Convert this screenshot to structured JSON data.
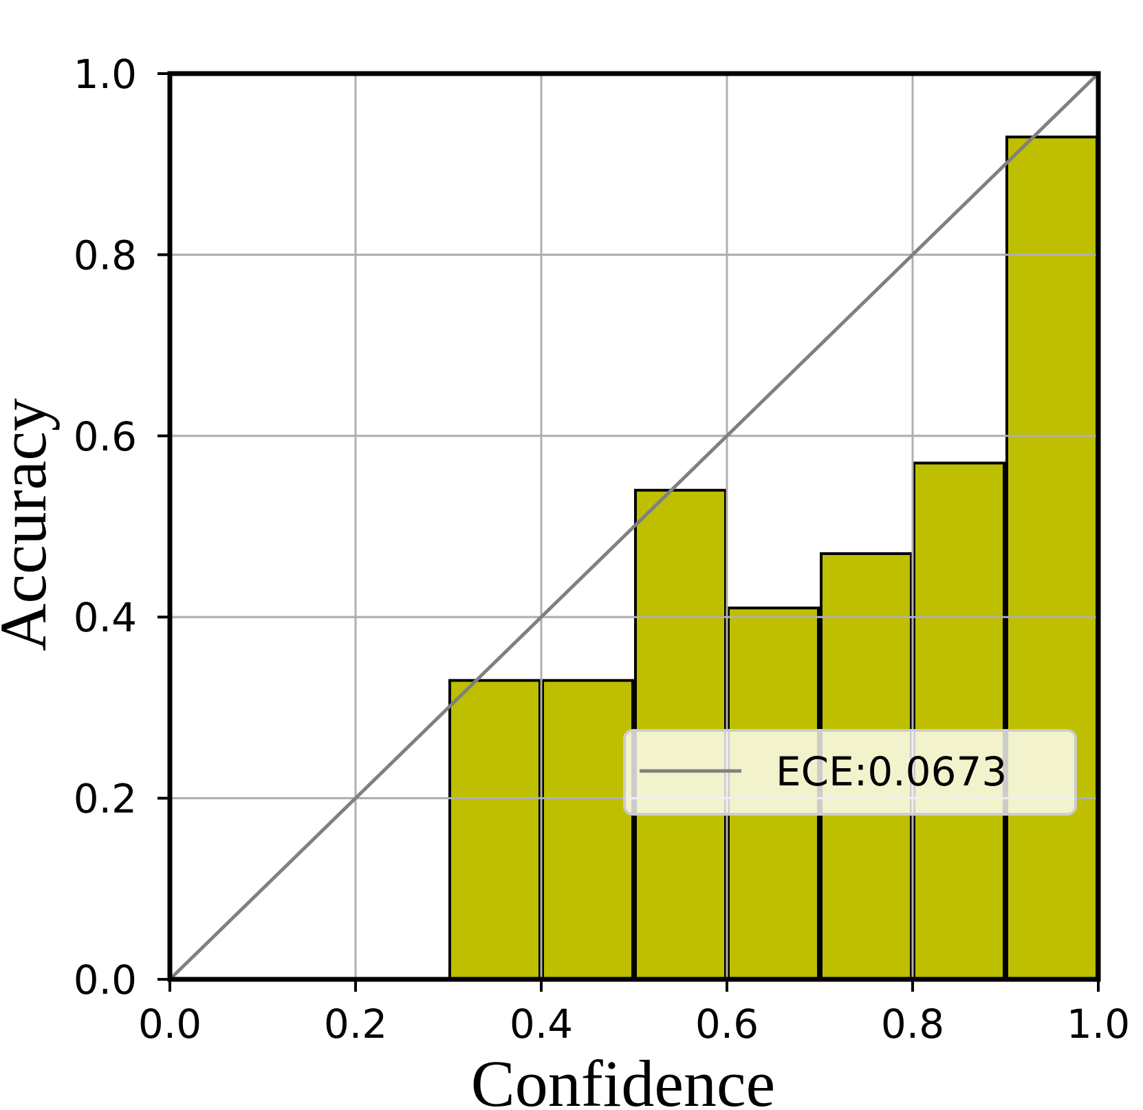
{
  "chart_data": {
    "type": "bar",
    "xlabel": "Confidence",
    "ylabel": "Accuracy",
    "xlim": [
      0,
      1
    ],
    "ylim": [
      0,
      1
    ],
    "grid": true,
    "x_ticks": [
      "0.0",
      "0.2",
      "0.4",
      "0.6",
      "0.8",
      "1.0"
    ],
    "y_ticks": [
      "0.0",
      "0.2",
      "0.4",
      "0.6",
      "0.8",
      "1.0"
    ],
    "bins": [
      {
        "x0": 0.3,
        "x1": 0.4,
        "value": 0.33
      },
      {
        "x0": 0.4,
        "x1": 0.5,
        "value": 0.33
      },
      {
        "x0": 0.5,
        "x1": 0.6,
        "value": 0.54
      },
      {
        "x0": 0.6,
        "x1": 0.7,
        "value": 0.41
      },
      {
        "x0": 0.7,
        "x1": 0.8,
        "value": 0.47
      },
      {
        "x0": 0.8,
        "x1": 0.9,
        "value": 0.57
      },
      {
        "x0": 0.9,
        "x1": 1.0,
        "value": 0.93
      }
    ],
    "reference_line": {
      "from": [
        0,
        0
      ],
      "to": [
        1,
        1
      ],
      "color": "#808080"
    },
    "legend": {
      "label": "ECE:0.0673",
      "placement": "center-right"
    },
    "colors": {
      "bar": "#bdbf00",
      "bar_edge": "#000000",
      "grid": "#b0b0b0",
      "diagonal": "#808080"
    }
  }
}
